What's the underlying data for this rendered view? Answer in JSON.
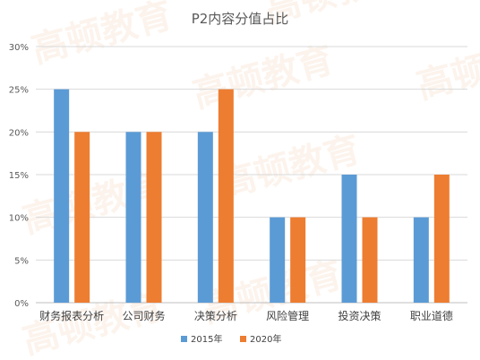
{
  "chart_data": {
    "type": "bar",
    "title": "P2内容分值占比",
    "categories": [
      "财务报表分析",
      "公司财务",
      "决策分析",
      "风险管理",
      "投资决策",
      "职业道德"
    ],
    "series": [
      {
        "name": "2015年",
        "values": [
          25,
          20,
          20,
          10,
          15,
          10
        ],
        "color": "#5B9BD5"
      },
      {
        "name": "2020年",
        "values": [
          20,
          20,
          25,
          10,
          10,
          15
        ],
        "color": "#ED7D31"
      }
    ],
    "y_ticks": [
      "0%",
      "5%",
      "10%",
      "15%",
      "20%",
      "25%",
      "30%"
    ],
    "ylim": [
      0,
      30
    ],
    "grid": true,
    "legend_position": "bottom"
  },
  "watermark": "高顿教育"
}
